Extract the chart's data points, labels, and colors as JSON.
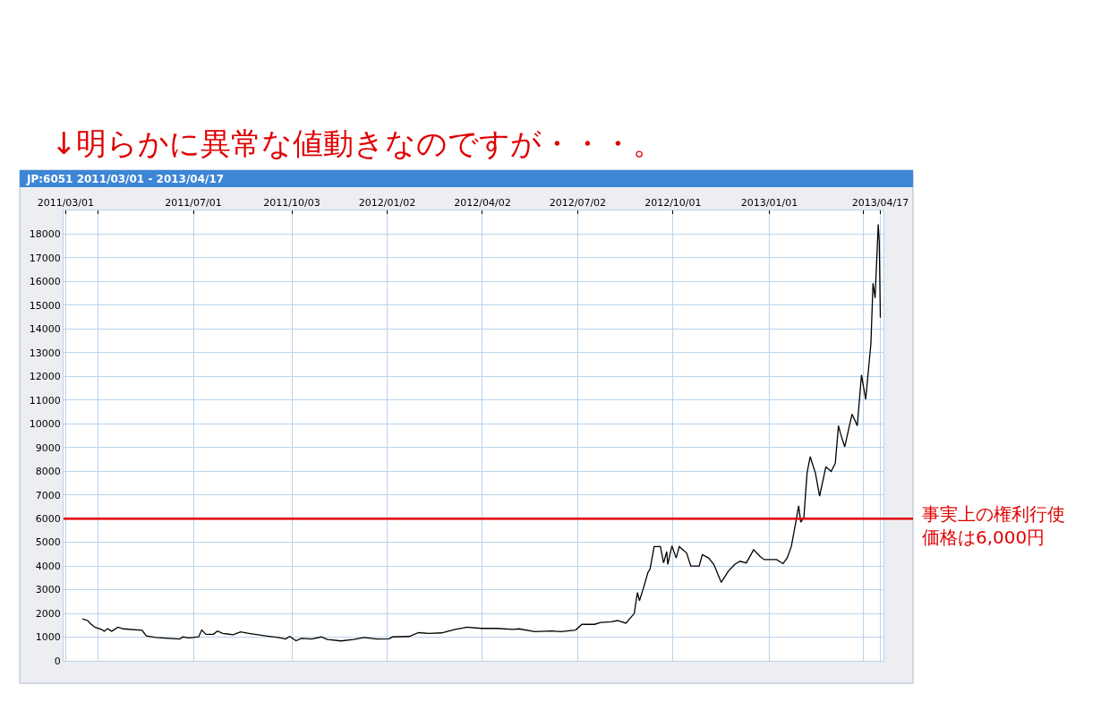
{
  "chart_data": {
    "type": "line",
    "title": "JP:6051 2011/03/01 - 2013/04/17",
    "annotations": [
      "↓明らかに異常な値動きなのですが・・・。"
    ],
    "x": [
      "2011-03-17",
      "2011-03-22",
      "2011-03-25",
      "2011-03-29",
      "2011-04-04",
      "2011-04-07",
      "2011-04-10",
      "2011-04-14",
      "2011-04-20",
      "2011-04-25",
      "2011-05-13",
      "2011-05-17",
      "2011-05-26",
      "2011-06-07",
      "2011-06-18",
      "2011-06-21",
      "2011-06-27",
      "2011-07-06",
      "2011-07-09",
      "2011-07-13",
      "2011-07-20",
      "2011-07-24",
      "2011-07-29",
      "2011-08-08",
      "2011-08-15",
      "2011-08-23",
      "2011-09-08",
      "2011-09-20",
      "2011-09-27",
      "2011-10-01",
      "2011-10-07",
      "2011-10-12",
      "2011-10-22",
      "2011-10-31",
      "2011-11-06",
      "2011-11-19",
      "2011-12-01",
      "2011-12-11",
      "2011-12-23",
      "2012-01-04",
      "2012-01-07",
      "2012-01-23",
      "2012-02-01",
      "2012-02-11",
      "2012-02-23",
      "2012-03-07",
      "2012-03-14",
      "2012-03-18",
      "2012-04-01",
      "2012-04-16",
      "2012-05-01",
      "2012-05-07",
      "2012-05-22",
      "2012-06-07",
      "2012-06-16",
      "2012-06-30",
      "2012-07-06",
      "2012-07-18",
      "2012-07-24",
      "2012-08-03",
      "2012-08-09",
      "2012-08-17",
      "2012-08-25",
      "2012-08-28",
      "2012-08-30",
      "2012-09-03",
      "2012-09-07",
      "2012-09-09",
      "2012-09-13",
      "2012-09-19",
      "2012-09-22",
      "2012-09-25",
      "2012-09-26",
      "2012-09-30",
      "2012-10-04",
      "2012-10-07",
      "2012-10-14",
      "2012-10-18",
      "2012-10-26",
      "2012-10-29",
      "2012-11-04",
      "2012-11-09",
      "2012-11-16",
      "2012-11-23",
      "2012-11-29",
      "2012-12-04",
      "2012-12-10",
      "2012-12-17",
      "2012-12-23",
      "2012-12-27",
      "2013-01-08",
      "2013-01-14",
      "2013-01-18",
      "2013-01-22",
      "2013-01-26",
      "2013-01-29",
      "2013-01-31",
      "2013-02-03",
      "2013-02-06",
      "2013-02-09",
      "2013-02-14",
      "2013-02-18",
      "2013-02-24",
      "2013-03-01",
      "2013-03-05",
      "2013-03-08",
      "2013-03-10",
      "2013-03-14",
      "2013-03-21",
      "2013-03-26",
      "2013-03-30",
      "2013-04-03",
      "2013-04-08",
      "2013-04-10",
      "2013-04-12",
      "2013-04-15",
      "2013-04-16",
      "2013-04-17"
    ],
    "series": [
      {
        "color": "#000000",
        "values": [
          1770,
          1700,
          1560,
          1420,
          1330,
          1250,
          1360,
          1250,
          1420,
          1350,
          1290,
          1050,
          990,
          950,
          920,
          1010,
          970,
          1010,
          1300,
          1120,
          1120,
          1260,
          1160,
          1100,
          1220,
          1160,
          1050,
          990,
          920,
          1030,
          850,
          950,
          920,
          1010,
          900,
          840,
          900,
          990,
          920,
          930,
          1010,
          1030,
          1190,
          1160,
          1180,
          1330,
          1380,
          1420,
          1370,
          1370,
          1330,
          1350,
          1230,
          1260,
          1230,
          1300,
          1540,
          1540,
          1620,
          1650,
          1700,
          1590,
          2000,
          2880,
          2540,
          3100,
          3720,
          3860,
          4820,
          4820,
          4130,
          4610,
          4070,
          4850,
          4340,
          4820,
          4550,
          4000,
          4000,
          4480,
          4340,
          4070,
          3310,
          3790,
          4070,
          4200,
          4130,
          4690,
          4410,
          4270,
          4270,
          4100,
          4340,
          4820,
          5780,
          6540,
          5850,
          6060,
          7920,
          8610,
          7920,
          6950,
          8190,
          7990,
          8340,
          9920,
          9580,
          9030,
          10410,
          9920,
          12060,
          11030,
          13380,
          15930,
          15310,
          18410,
          17650,
          14480
        ]
      }
    ],
    "xlim": [
      "2011-02-27",
      "2013-04-20"
    ],
    "xticks": [
      {
        "value": "2011-03-01",
        "label": "2011/03/01"
      },
      {
        "value": "2011-04-01",
        "label": null
      },
      {
        "value": "2011-07-01",
        "label": "2011/07/01"
      },
      {
        "value": "2011-10-03",
        "label": "2011/10/03"
      },
      {
        "value": "2012-01-02",
        "label": "2012/01/02"
      },
      {
        "value": "2012-04-02",
        "label": "2012/04/02"
      },
      {
        "value": "2012-07-02",
        "label": "2012/07/02"
      },
      {
        "value": "2012-10-01",
        "label": "2012/10/01"
      },
      {
        "value": "2013-01-01",
        "label": "2013/01/01"
      },
      {
        "value": "2013-04-01",
        "label": null
      },
      {
        "value": "2013-04-17",
        "label": "2013/04/17"
      }
    ],
    "ylim": [
      0,
      19000
    ],
    "yticks": [
      0,
      1000,
      2000,
      3000,
      4000,
      5000,
      6000,
      7000,
      8000,
      9000,
      10000,
      11000,
      12000,
      13000,
      14000,
      15000,
      16000,
      17000,
      18000
    ],
    "ref_lines": [
      {
        "axis": "y",
        "value": 6000,
        "label": "事実上の権利行使価格は6,000円",
        "color": "#e00000"
      }
    ],
    "grid": true,
    "marker": "none",
    "line_style": "solid"
  }
}
